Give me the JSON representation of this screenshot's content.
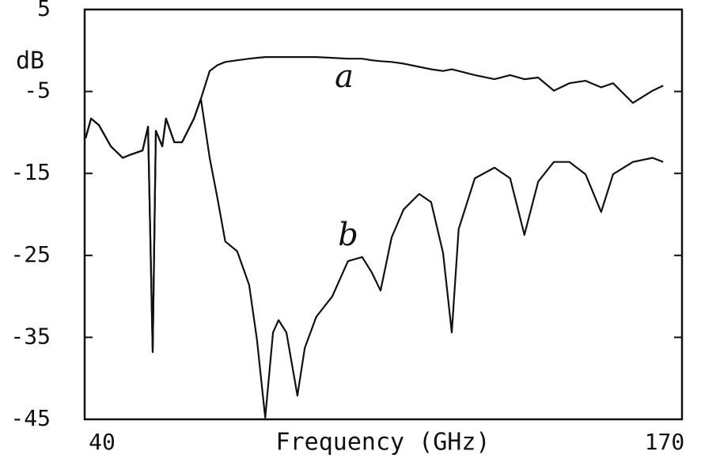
{
  "chart_data": {
    "type": "line",
    "y_label": "dB",
    "x_label": "Frequency (GHz)",
    "x": [
      40.2,
      41.4,
      43.1,
      45.7,
      48.3,
      50,
      52.6,
      53.8,
      54.3,
      54.8,
      55.5,
      56.9,
      57.7,
      59.5,
      61.2,
      63.8,
      65.3,
      67.2,
      68.9,
      70.6,
      73.2,
      75.8,
      77.5,
      79.3,
      81,
      82.2,
      83.9,
      86.3,
      87.9,
      90.4,
      93.9,
      97.3,
      100.4,
      102.5,
      104.4,
      106.8,
      109.4,
      112.8,
      115.4,
      118,
      119.9,
      121.4,
      124.9,
      129.2,
      132.6,
      135.7,
      138.7,
      142.1,
      145.5,
      149,
      152.4,
      155,
      159.3,
      163.6,
      165.9
    ],
    "series": [
      {
        "name": "a",
        "color": "#111111",
        "values": [
          -10.7,
          -8.3,
          -9.1,
          -11.7,
          -13.1,
          -12.7,
          -12.2,
          -9.3,
          -22.8,
          -36.8,
          -9.8,
          -11.7,
          -8.3,
          -11.2,
          -11.2,
          -8.3,
          -5.9,
          -2.5,
          -1.8,
          -1.4,
          -1.2,
          -1.0,
          -0.9,
          -0.8,
          -0.8,
          -0.8,
          -0.8,
          -0.8,
          -0.8,
          -0.8,
          -0.9,
          -1.0,
          -1.0,
          -1.2,
          -1.3,
          -1.4,
          -1.6,
          -2.0,
          -2.3,
          -2.5,
          -2.3,
          -2.5,
          -3.0,
          -3.5,
          -3.0,
          -3.5,
          -3.3,
          -4.9,
          -4.0,
          -3.7,
          -4.5,
          -4.0,
          -6.4,
          -4.9,
          -4.3
        ]
      },
      {
        "name": "b",
        "color": "#111111",
        "values": [
          -10.7,
          -8.3,
          -9.1,
          -11.7,
          -13.1,
          -12.7,
          -12.2,
          -9.3,
          -22.8,
          -36.8,
          -9.8,
          -11.7,
          -8.3,
          -11.2,
          -11.2,
          -8.3,
          -5.9,
          -13.1,
          -18,
          -23.3,
          -24.5,
          -28.6,
          -35.3,
          -44.8,
          -34.4,
          -32.9,
          -34.4,
          -42.1,
          -36.3,
          -32.5,
          -30,
          -25.7,
          -25.2,
          -27.1,
          -29.3,
          -22.8,
          -19.4,
          -17.5,
          -18.5,
          -24.7,
          -34.4,
          -21.8,
          -15.6,
          -14.3,
          -15.6,
          -22.5,
          -16,
          -13.6,
          -13.6,
          -15.1,
          -19.7,
          -15.1,
          -13.6,
          -13.1,
          -13.6
        ]
      }
    ],
    "xlim": [
      40,
      170
    ],
    "xticks": [
      40,
      170
    ],
    "ylim": [
      -45,
      5
    ],
    "yticks": [
      5,
      -5,
      -15,
      -25,
      -35,
      -45
    ]
  }
}
